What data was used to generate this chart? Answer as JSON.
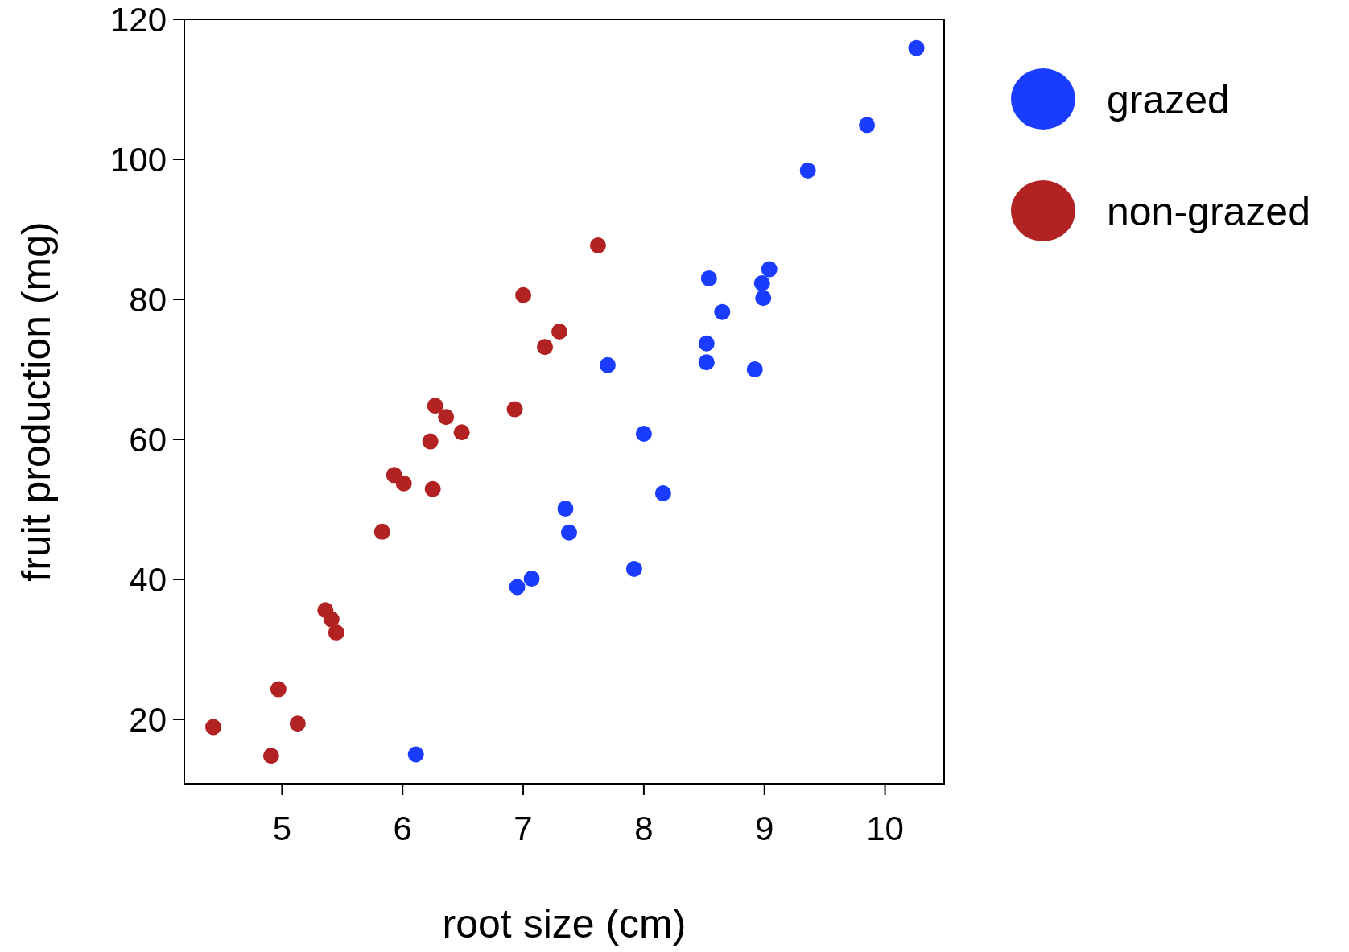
{
  "chart_data": {
    "type": "scatter",
    "xlabel": "root size (cm)",
    "ylabel": "fruit production (mg)",
    "xlim": [
      4.19,
      10.49
    ],
    "ylim": [
      10.8,
      120
    ],
    "xticks": [
      5,
      6,
      7,
      8,
      9,
      10
    ],
    "yticks": [
      20,
      40,
      60,
      80,
      100,
      120
    ],
    "grid": false,
    "legend": "right",
    "marker": "circle",
    "series": [
      {
        "name": "grazed",
        "color": "#1a3cff",
        "x": [
          10.26,
          9.85,
          9.36,
          9.04,
          8.98,
          8.99,
          8.54,
          8.65,
          8.52,
          8.52,
          8.92,
          7.7,
          8.0,
          8.16,
          7.35,
          7.38,
          7.92,
          7.07,
          6.95,
          6.11
        ],
        "values": [
          115.9,
          104.9,
          98.4,
          84.3,
          82.3,
          80.2,
          83.0,
          78.2,
          73.7,
          71.0,
          70.0,
          70.6,
          60.8,
          52.3,
          50.1,
          46.7,
          41.5,
          40.1,
          38.9,
          15.0
        ]
      },
      {
        "name": "non-grazed",
        "color": "#b22222",
        "x": [
          7.62,
          7.0,
          7.3,
          7.18,
          6.93,
          6.27,
          6.36,
          6.49,
          6.23,
          5.93,
          6.01,
          6.25,
          5.83,
          5.36,
          5.41,
          5.45,
          4.97,
          5.13,
          4.43,
          4.91
        ],
        "values": [
          87.7,
          80.6,
          75.4,
          73.2,
          64.3,
          64.8,
          63.2,
          61.0,
          59.7,
          54.9,
          53.7,
          52.9,
          46.8,
          35.6,
          34.3,
          32.4,
          24.3,
          19.4,
          18.9,
          14.8
        ]
      }
    ]
  }
}
